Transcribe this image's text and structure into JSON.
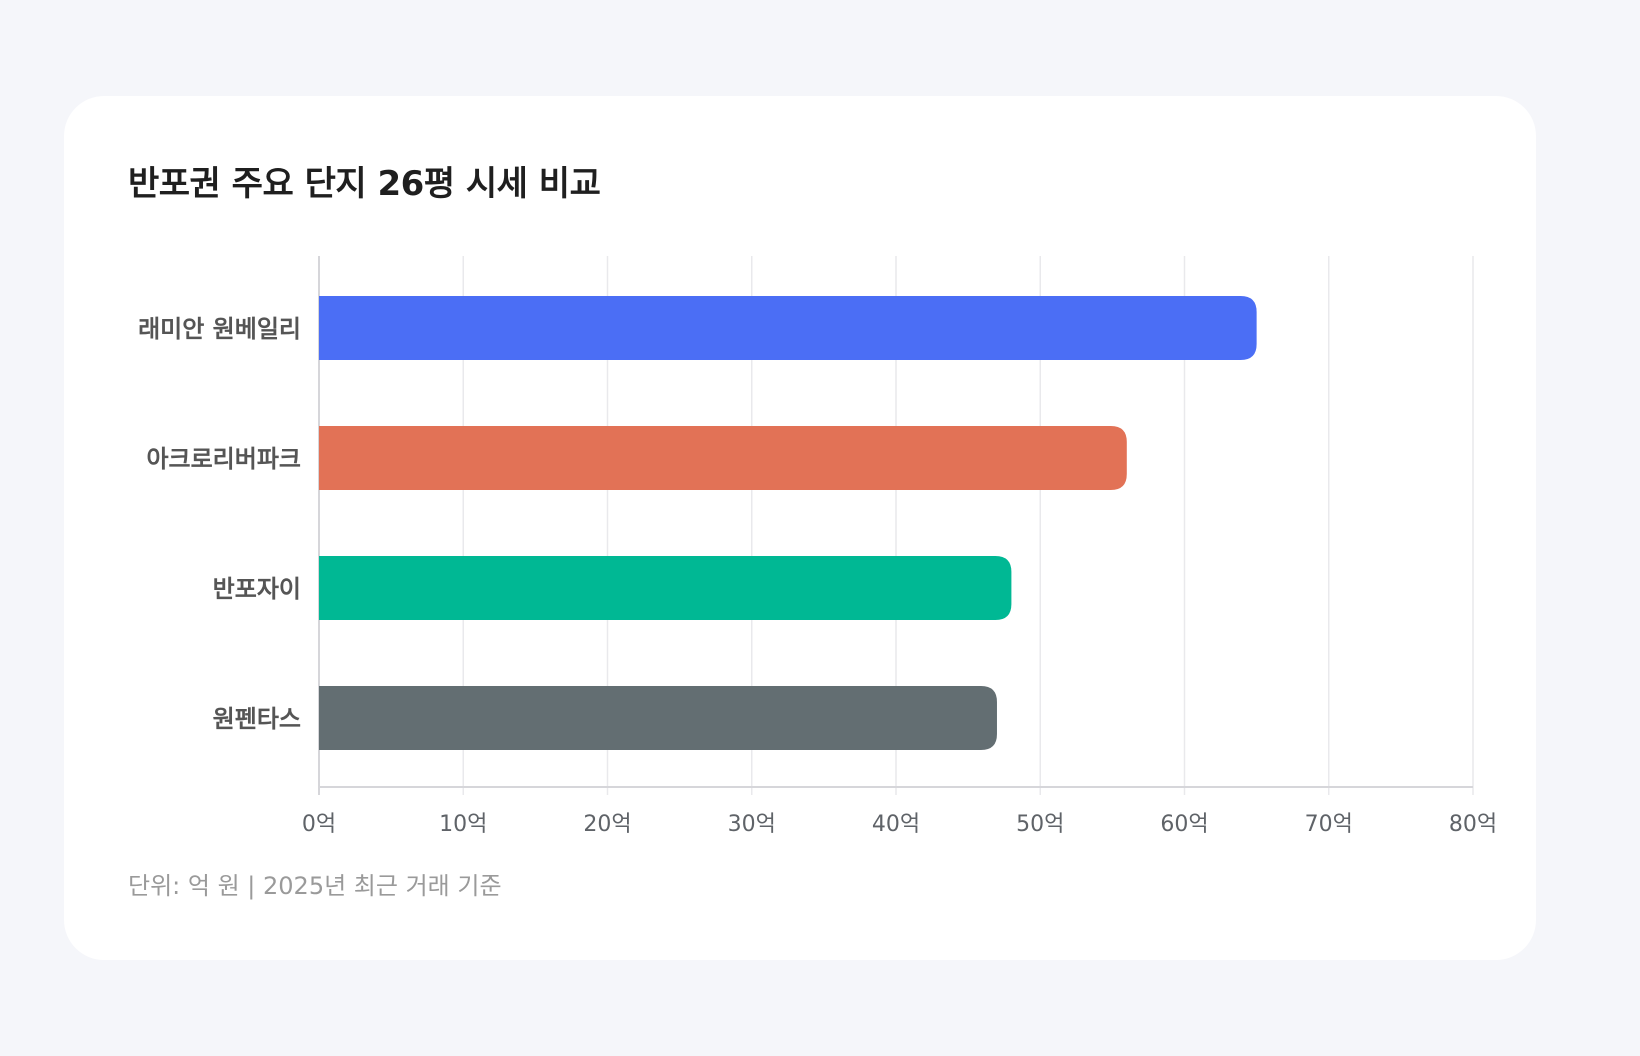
{
  "chart_data": {
    "type": "bar",
    "orientation": "horizontal",
    "title": "반포권 주요 단지 26평 시세 비교",
    "categories": [
      "래미안 원베일리",
      "아크로리버파크",
      "반포자이",
      "원펜타스"
    ],
    "values": [
      65,
      56,
      48,
      47
    ],
    "colors": [
      "#4b6ef5",
      "#e27256",
      "#00b894",
      "#636e72"
    ],
    "xlim": [
      0,
      80
    ],
    "ticks": [
      0,
      10,
      20,
      30,
      40,
      50,
      60,
      70,
      80
    ],
    "tick_labels": [
      "0억",
      "10억",
      "20억",
      "30억",
      "40억",
      "50억",
      "60억",
      "70억",
      "80억"
    ],
    "grid": true,
    "footnote": "단위: 억 원 | 2025년 최근 거래 기준"
  }
}
